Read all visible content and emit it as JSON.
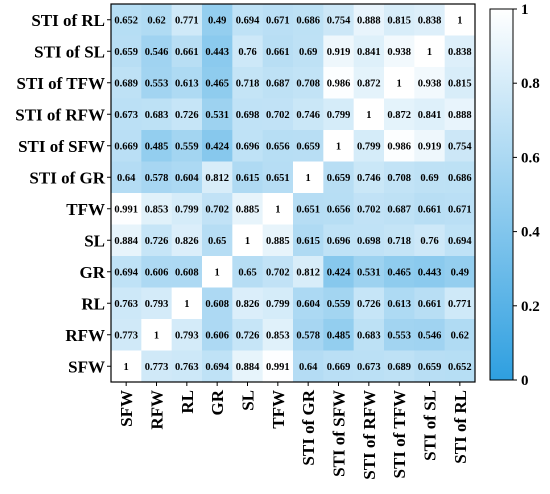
{
  "chart_data": {
    "type": "heatmap",
    "row_labels": [
      "STI of RL",
      "STI of SL",
      "STI of TFW",
      "STI of RFW",
      "STI of SFW",
      "STI of GR",
      "TFW",
      "SL",
      "GR",
      "RL",
      "RFW",
      "SFW"
    ],
    "col_labels": [
      "SFW",
      "RFW",
      "RL",
      "GR",
      "SL",
      "TFW",
      "STI of GR",
      "STI of SFW",
      "STI of RFW",
      "STI of TFW",
      "STI of SL",
      "STI of RL"
    ],
    "values": [
      [
        "0.652",
        "0.62",
        "0.771",
        "0.49",
        "0.694",
        "0.671",
        "0.686",
        "0.754",
        "0.888",
        "0.815",
        "0.838",
        "1"
      ],
      [
        "0.659",
        "0.546",
        "0.661",
        "0.443",
        "0.76",
        "0.661",
        "0.69",
        "0.919",
        "0.841",
        "0.938",
        "1",
        "0.838"
      ],
      [
        "0.689",
        "0.553",
        "0.613",
        "0.465",
        "0.718",
        "0.687",
        "0.708",
        "0.986",
        "0.872",
        "1",
        "0.938",
        "0.815"
      ],
      [
        "0.673",
        "0.683",
        "0.726",
        "0.531",
        "0.698",
        "0.702",
        "0.746",
        "0.799",
        "1",
        "0.872",
        "0.841",
        "0.888"
      ],
      [
        "0.669",
        "0.485",
        "0.559",
        "0.424",
        "0.696",
        "0.656",
        "0.659",
        "1",
        "0.799",
        "0.986",
        "0.919",
        "0.754"
      ],
      [
        "0.64",
        "0.578",
        "0.604",
        "0.812",
        "0.615",
        "0.651",
        "1",
        "0.659",
        "0.746",
        "0.708",
        "0.69",
        "0.686"
      ],
      [
        "0.991",
        "0.853",
        "0.799",
        "0.702",
        "0.885",
        "1",
        "0.651",
        "0.656",
        "0.702",
        "0.687",
        "0.661",
        "0.671"
      ],
      [
        "0.884",
        "0.726",
        "0.826",
        "0.65",
        "1",
        "0.885",
        "0.615",
        "0.696",
        "0.698",
        "0.718",
        "0.76",
        "0.694"
      ],
      [
        "0.694",
        "0.606",
        "0.608",
        "1",
        "0.65",
        "0.702",
        "0.812",
        "0.424",
        "0.531",
        "0.465",
        "0.443",
        "0.49"
      ],
      [
        "0.763",
        "0.793",
        "1",
        "0.608",
        "0.826",
        "0.799",
        "0.604",
        "0.559",
        "0.726",
        "0.613",
        "0.661",
        "0.771"
      ],
      [
        "0.773",
        "1",
        "0.793",
        "0.606",
        "0.726",
        "0.853",
        "0.578",
        "0.485",
        "0.683",
        "0.553",
        "0.546",
        "0.62"
      ],
      [
        "1",
        "0.773",
        "0.763",
        "0.694",
        "0.884",
        "0.991",
        "0.64",
        "0.669",
        "0.673",
        "0.689",
        "0.659",
        "0.652"
      ]
    ],
    "colorbar": {
      "range": [
        0,
        1
      ],
      "ticks": [
        "0",
        "0.2",
        "0.4",
        "0.6",
        "0.8",
        "1"
      ],
      "color_low": "#2e9fe0",
      "color_high": "#ffffff"
    }
  }
}
